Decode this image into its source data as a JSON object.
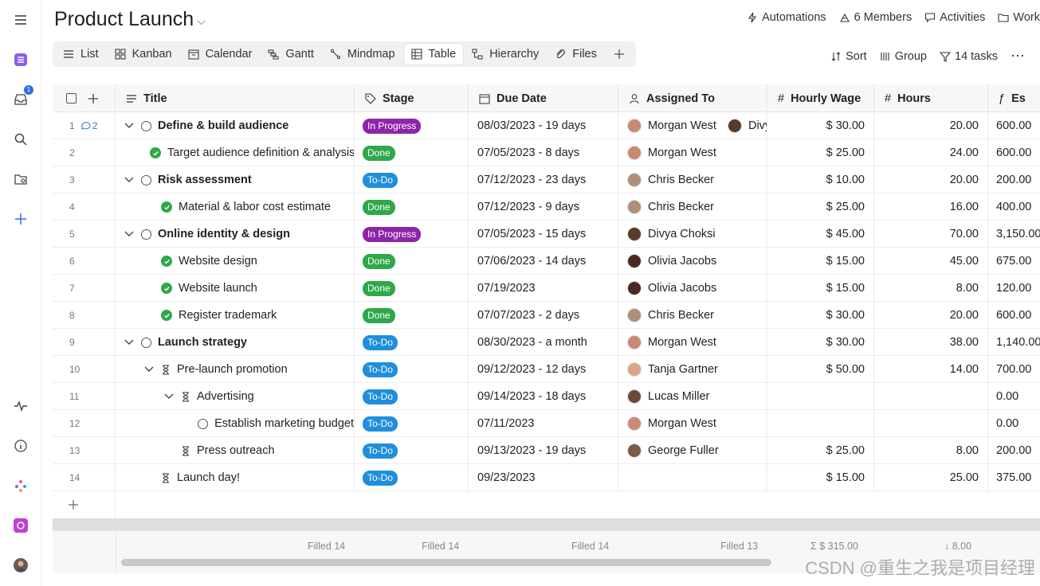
{
  "header": {
    "title": "Product Launch",
    "actions": [
      {
        "label": "Automations",
        "icon": "lightning-icon"
      },
      {
        "label": "6 Members",
        "icon": "members-icon"
      },
      {
        "label": "Activities",
        "icon": "chat-icon"
      },
      {
        "label": "Work",
        "icon": "folder-icon"
      }
    ]
  },
  "views": [
    {
      "label": "List",
      "icon": "list-icon"
    },
    {
      "label": "Kanban",
      "icon": "kanban-icon"
    },
    {
      "label": "Calendar",
      "icon": "calendar-icon"
    },
    {
      "label": "Gantt",
      "icon": "gantt-icon"
    },
    {
      "label": "Mindmap",
      "icon": "mindmap-icon"
    },
    {
      "label": "Table",
      "icon": "table-icon",
      "active": true
    },
    {
      "label": "Hierarchy",
      "icon": "hierarchy-icon"
    },
    {
      "label": "Files",
      "icon": "paperclip-icon"
    }
  ],
  "view_actions": {
    "sort": "Sort",
    "group": "Group",
    "tasks": "14 tasks"
  },
  "rail": {
    "inbox_badge": "1"
  },
  "columns": {
    "title": "Title",
    "stage": "Stage",
    "due": "Due Date",
    "assigned": "Assigned To",
    "wage": "Hourly Wage",
    "hours": "Hours",
    "est": "Es"
  },
  "rows": [
    {
      "num": "1",
      "comments": "2",
      "indent": 0,
      "chev": true,
      "status": "circle",
      "bold": true,
      "title": "Define & build audience",
      "stage": "In Progress",
      "stage_type": "prog",
      "due": "08/03/2023 - 19 days",
      "assigned": [
        "Morgan West",
        "Divya"
      ],
      "avatar_colors": [
        "#c98a73",
        "#5a3b2a"
      ],
      "wage": "$ 30.00",
      "hours": "20.00",
      "est": "600.00"
    },
    {
      "num": "2",
      "indent": 1,
      "status": "check",
      "title": "Target audience definition & analysis",
      "stage": "Done",
      "stage_type": "done",
      "due": "07/05/2023 - 8 days",
      "assigned": [
        "Morgan West"
      ],
      "avatar_colors": [
        "#c98a73"
      ],
      "wage": "$ 25.00",
      "hours": "24.00",
      "est": "600.00"
    },
    {
      "num": "3",
      "indent": 0,
      "chev": true,
      "status": "circle",
      "bold": true,
      "title": "Risk assessment",
      "stage": "To-Do",
      "stage_type": "todo",
      "due": "07/12/2023 - 23 days",
      "assigned": [
        "Chris Becker"
      ],
      "avatar_colors": [
        "#b08f7a"
      ],
      "wage": "$ 10.00",
      "hours": "20.00",
      "est": "200.00"
    },
    {
      "num": "4",
      "indent": 1,
      "status": "check",
      "title": "Material & labor cost estimate",
      "stage": "Done",
      "stage_type": "done",
      "due": "07/12/2023 - 9 days",
      "assigned": [
        "Chris Becker"
      ],
      "avatar_colors": [
        "#b08f7a"
      ],
      "wage": "$ 25.00",
      "hours": "16.00",
      "est": "400.00"
    },
    {
      "num": "5",
      "indent": 0,
      "chev": true,
      "status": "circle",
      "bold": true,
      "title": "Online identity & design",
      "stage": "In Progress",
      "stage_type": "prog",
      "due": "07/05/2023 - 15 days",
      "assigned": [
        "Divya Choksi"
      ],
      "avatar_colors": [
        "#5a3b2a"
      ],
      "wage": "$ 45.00",
      "hours": "70.00",
      "est": "3,150.00"
    },
    {
      "num": "6",
      "indent": 1,
      "status": "check",
      "title": "Website design",
      "stage": "Done",
      "stage_type": "done",
      "due": "07/06/2023 - 14 days",
      "assigned": [
        "Olivia Jacobs"
      ],
      "avatar_colors": [
        "#4a2a20"
      ],
      "wage": "$ 15.00",
      "hours": "45.00",
      "est": "675.00"
    },
    {
      "num": "7",
      "indent": 1,
      "status": "check",
      "title": "Website launch",
      "stage": "Done",
      "stage_type": "done",
      "due": "07/19/2023",
      "assigned": [
        "Olivia Jacobs"
      ],
      "avatar_colors": [
        "#4a2a20"
      ],
      "wage": "$ 15.00",
      "hours": "8.00",
      "est": "120.00"
    },
    {
      "num": "8",
      "indent": 1,
      "status": "check",
      "title": "Register trademark",
      "stage": "Done",
      "stage_type": "done",
      "due": "07/07/2023 - 2 days",
      "assigned": [
        "Chris Becker"
      ],
      "avatar_colors": [
        "#b08f7a"
      ],
      "wage": "$ 30.00",
      "hours": "20.00",
      "est": "600.00"
    },
    {
      "num": "9",
      "indent": 0,
      "chev": true,
      "status": "circle",
      "bold": true,
      "title": "Launch strategy",
      "stage": "To-Do",
      "stage_type": "todo",
      "due": "08/30/2023 - a month",
      "assigned": [
        "Morgan West"
      ],
      "avatar_colors": [
        "#c98a73"
      ],
      "wage": "$ 30.00",
      "hours": "38.00",
      "est": "1,140.00"
    },
    {
      "num": "10",
      "indent": 1,
      "chev": true,
      "status": "hour",
      "title": "Pre-launch promotion",
      "stage": "To-Do",
      "stage_type": "todo",
      "due": "09/12/2023 - 12 days",
      "assigned": [
        "Tanja Gartner"
      ],
      "avatar_colors": [
        "#d8a48a"
      ],
      "wage": "$ 50.00",
      "hours": "14.00",
      "est": "700.00"
    },
    {
      "num": "11",
      "indent": 2,
      "chev": true,
      "status": "hour",
      "title": "Advertising",
      "stage": "To-Do",
      "stage_type": "todo",
      "due": "09/14/2023 - 18 days",
      "assigned": [
        "Lucas Miller"
      ],
      "avatar_colors": [
        "#6b4a3a"
      ],
      "wage": "",
      "hours": "",
      "est": "0.00"
    },
    {
      "num": "12",
      "indent": 3,
      "status": "circle",
      "title": "Establish marketing budget",
      "stage": "To-Do",
      "stage_type": "todo",
      "due": "07/11/2023",
      "assigned": [
        "Morgan West"
      ],
      "avatar_colors": [
        "#c98a73"
      ],
      "wage": "",
      "hours": "",
      "est": "0.00"
    },
    {
      "num": "13",
      "indent": 2,
      "status": "hour",
      "title": "Press outreach",
      "stage": "To-Do",
      "stage_type": "todo",
      "due": "09/13/2023 - 19 days",
      "assigned": [
        "George Fuller"
      ],
      "avatar_colors": [
        "#7a5a48"
      ],
      "wage": "$ 25.00",
      "hours": "8.00",
      "est": "200.00"
    },
    {
      "num": "14",
      "indent": 1,
      "status": "hour",
      "title": "Launch day!",
      "stage": "To-Do",
      "stage_type": "todo",
      "due": "09/23/2023",
      "assigned": [],
      "avatar_colors": [],
      "wage": "$ 15.00",
      "hours": "25.00",
      "est": "375.00"
    }
  ],
  "footer": {
    "title_filled": "Filled 14",
    "stage_filled": "Filled 14",
    "due_filled": "Filled 14",
    "assigned_filled": "Filled 13",
    "wage_sum": "$ 315.00",
    "hours_min": "8.00"
  },
  "watermark": "CSDN @重生之我是项目经理"
}
